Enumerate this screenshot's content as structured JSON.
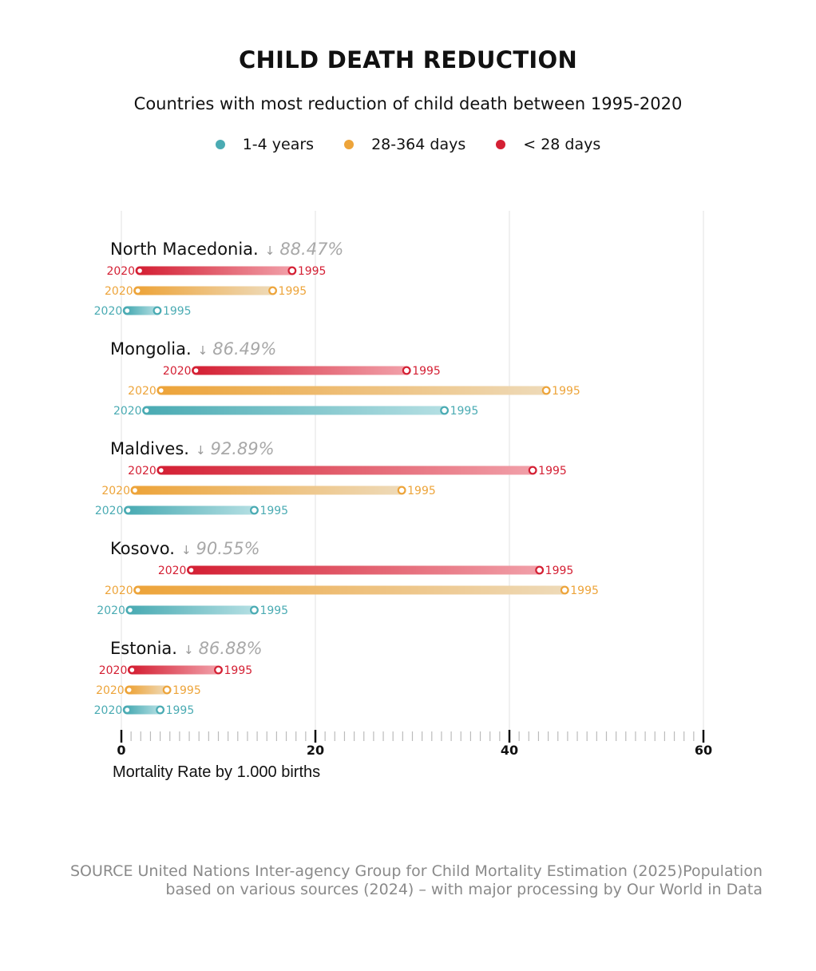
{
  "title": "CHILD DEATH REDUCTION",
  "subtitle": "Countries with most reduction of child death between 1995-2020",
  "source": "SOURCE United Nations Inter-agency Group for Child Mortality Estimation (2025)Population based on various sources (2024) – with major processing by Our World in Data",
  "colors": {
    "1-4 years": "#4aabb3",
    "28-364 days": "#eda43a",
    "< 28 days": "#d42034"
  },
  "chart_data": {
    "type": "dumbbell",
    "xlabel": "Mortality Rate by 1.000 births",
    "xlim": [
      0,
      60
    ],
    "xticks": [
      "0",
      "20",
      "40",
      "60"
    ],
    "legend": [
      "1-4 years",
      "28-364 days",
      "< 28 days"
    ],
    "legend_position": "top",
    "grid": true,
    "countries": [
      {
        "name": "North Macedonia.",
        "reduction": "88.47%",
        "rows": [
          {
            "series": "< 28 days",
            "y2020": 1.9,
            "y1995": 17.6
          },
          {
            "series": "28-364 days",
            "y2020": 1.7,
            "y1995": 15.6
          },
          {
            "series": "1-4 years",
            "y2020": 0.6,
            "y1995": 3.7
          }
        ]
      },
      {
        "name": "Mongolia.",
        "reduction": "86.49%",
        "rows": [
          {
            "series": "< 28 days",
            "y2020": 7.7,
            "y1995": 29.4
          },
          {
            "series": "28-364 days",
            "y2020": 4.1,
            "y1995": 43.8
          },
          {
            "series": "1-4 years",
            "y2020": 2.6,
            "y1995": 33.3
          }
        ]
      },
      {
        "name": "Maldives.",
        "reduction": "92.89%",
        "rows": [
          {
            "series": "< 28 days",
            "y2020": 4.1,
            "y1995": 42.4
          },
          {
            "series": "28-364 days",
            "y2020": 1.4,
            "y1995": 28.9
          },
          {
            "series": "1-4 years",
            "y2020": 0.7,
            "y1995": 13.7
          }
        ]
      },
      {
        "name": "Kosovo.",
        "reduction": "90.55%",
        "rows": [
          {
            "series": "< 28 days",
            "y2020": 7.2,
            "y1995": 43.1
          },
          {
            "series": "28-364 days",
            "y2020": 1.7,
            "y1995": 45.7
          },
          {
            "series": "1-4 years",
            "y2020": 0.9,
            "y1995": 13.7
          }
        ]
      },
      {
        "name": "Estonia.",
        "reduction": "86.88%",
        "rows": [
          {
            "series": "< 28 days",
            "y2020": 1.1,
            "y1995": 10.0
          },
          {
            "series": "28-364 days",
            "y2020": 0.8,
            "y1995": 4.7
          },
          {
            "series": "1-4 years",
            "y2020": 0.6,
            "y1995": 4.0
          }
        ]
      }
    ],
    "start_label": "2020",
    "end_label": "1995",
    "trend_glyph": "↓"
  }
}
